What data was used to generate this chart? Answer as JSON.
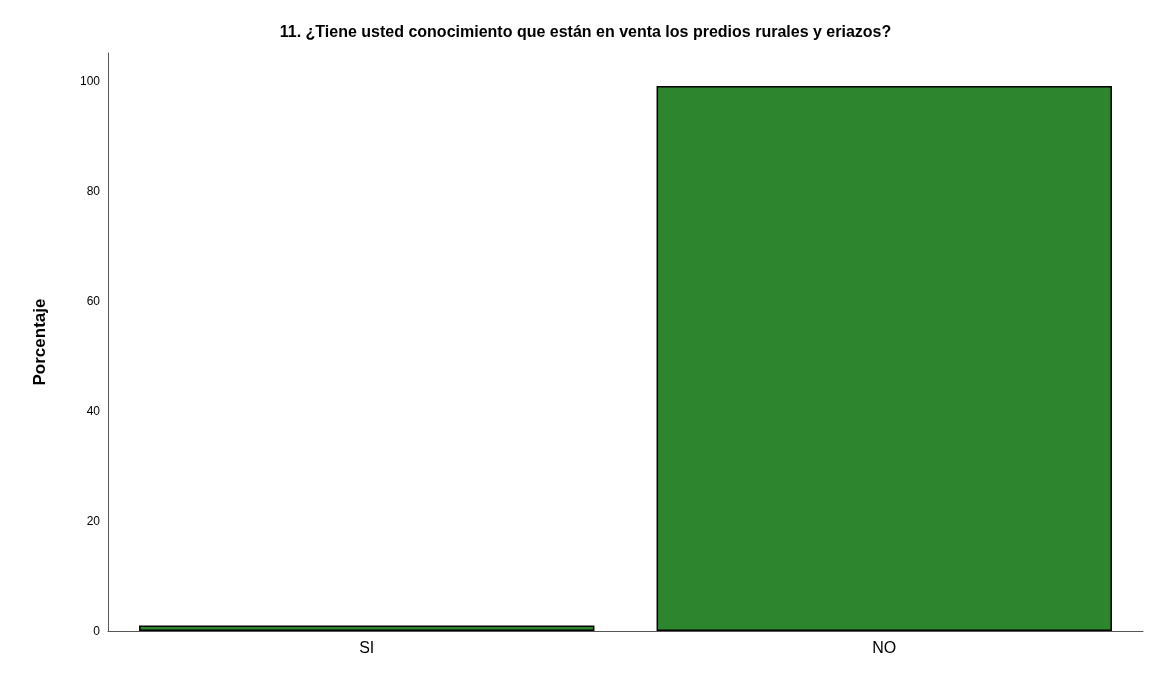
{
  "chart_data": {
    "type": "bar",
    "title": "11. ¿Tiene usted conocimiento que están en venta los predios rurales y eriazos?",
    "ylabel": "Porcentaje",
    "categories": [
      "SI",
      "NO"
    ],
    "values": [
      1,
      99
    ],
    "color": "#2d862d",
    "ylim": [
      0,
      105
    ],
    "yticks": [
      0,
      20,
      40,
      60,
      80,
      100
    ],
    "grid": false
  }
}
